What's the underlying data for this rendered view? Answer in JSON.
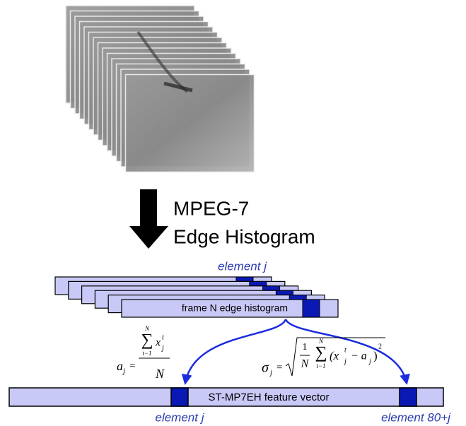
{
  "arrow_label": [
    "MPEG-7",
    "Edge Histogram"
  ],
  "histogram_stack": {
    "top_label": "element j",
    "front_label": "frame N edge histogram"
  },
  "feature_vector": {
    "label": "ST-MP7EH feature vector",
    "element_left": "element j",
    "element_right": "element 80+j"
  },
  "formulas": {
    "mean": {
      "lhs": "a",
      "lhs_sub": "j",
      "eq": "=",
      "sum": "∑",
      "sum_top": "N",
      "sum_bottom": "t−1",
      "x": "x",
      "x_sub": "j",
      "x_sup": "t",
      "denominator": "N"
    },
    "std": {
      "lhs": "σ",
      "lhs_sub": "j",
      "eq": "=",
      "one": "1",
      "denominator": "N",
      "sum": "∑",
      "sum_top": "N",
      "sum_bottom": "t−1",
      "open": "(x",
      "x_sub": "j",
      "x_sup": "t",
      "minus": "− a",
      "a_sub": "j",
      "close": ")",
      "power": "2"
    }
  }
}
